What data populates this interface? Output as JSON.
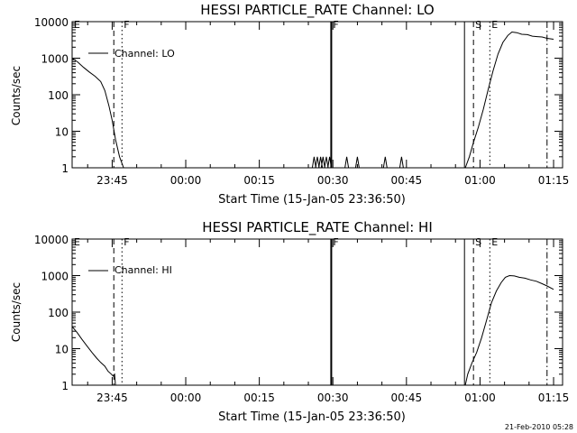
{
  "chart_data": [
    {
      "type": "line",
      "title": "HESSI PARTICLE_RATE Channel: LO",
      "xlabel": "Start Time (15-Jan-05 23:36:50)",
      "ylabel": "Counts/sec",
      "y_scale": "log",
      "ylim": [
        1,
        10000
      ],
      "y_ticks": [
        "1",
        "10",
        "100",
        "1000",
        "10000"
      ],
      "xlim": [
        "23:36:50",
        "01:16:50"
      ],
      "x_ticks": [
        "23:45",
        "00:00",
        "00:15",
        "00:30",
        "00:45",
        "01:00",
        "01:15"
      ],
      "legend": "Channel: LO",
      "legend_position": "top-left",
      "grid": false,
      "series": [
        {
          "name": "Channel: LO",
          "points": [
            [
              "23:36:50",
              1000
            ],
            [
              "23:38:00",
              780
            ],
            [
              "23:39:10",
              560
            ],
            [
              "23:40:20",
              420
            ],
            [
              "23:41:30",
              320
            ],
            [
              "23:42:40",
              230
            ],
            [
              "23:43:30",
              130
            ],
            [
              "23:44:20",
              50
            ],
            [
              "23:45:00",
              20
            ],
            [
              "23:45:40",
              6
            ],
            [
              "23:46:30",
              2
            ],
            [
              "23:47:20",
              1
            ],
            [
              "00:30:00",
              1
            ],
            [
              "00:57:00",
              1
            ],
            [
              "00:57:50",
              2
            ],
            [
              "00:58:40",
              5
            ],
            [
              "00:59:40",
              13
            ],
            [
              "01:00:40",
              40
            ],
            [
              "01:01:40",
              140
            ],
            [
              "01:02:40",
              450
            ],
            [
              "01:03:40",
              1300
            ],
            [
              "01:04:40",
              2700
            ],
            [
              "01:05:40",
              4200
            ],
            [
              "01:06:30",
              5200
            ],
            [
              "01:07:30",
              5000
            ],
            [
              "01:08:30",
              4500
            ],
            [
              "01:09:40",
              4400
            ],
            [
              "01:10:40",
              4000
            ],
            [
              "01:11:40",
              3900
            ],
            [
              "01:12:40",
              3800
            ],
            [
              "01:13:40",
              3500
            ],
            [
              "01:15:00",
              3300
            ]
          ]
        }
      ],
      "spikes": [
        "00:26:10",
        "00:26:50",
        "00:27:30",
        "00:28:00",
        "00:28:40",
        "00:29:20",
        "00:32:50",
        "00:35:00",
        "00:40:40",
        "00:44:00"
      ],
      "markers": [
        {
          "time": "23:36:50",
          "label": "E",
          "style": "dash-dot"
        },
        {
          "time": "23:45:20",
          "label": "",
          "style": "dash"
        },
        {
          "time": "23:47:00",
          "label": "F",
          "style": "dot"
        },
        {
          "time": "00:29:40",
          "label": "F",
          "style": "solid"
        },
        {
          "time": "00:56:50",
          "label": "",
          "style": "solid"
        },
        {
          "time": "00:58:40",
          "label": "S",
          "style": "dash"
        },
        {
          "time": "01:02:00",
          "label": "E",
          "style": "dot"
        },
        {
          "time": "01:13:40",
          "label": "",
          "style": "dash-dot"
        }
      ]
    },
    {
      "type": "line",
      "title": "HESSI PARTICLE_RATE Channel: HI",
      "xlabel": "Start Time (15-Jan-05 23:36:50)",
      "ylabel": "Counts/sec",
      "y_scale": "log",
      "ylim": [
        1,
        10000
      ],
      "y_ticks": [
        "1",
        "10",
        "100",
        "1000",
        "10000"
      ],
      "xlim": [
        "23:36:50",
        "01:16:50"
      ],
      "x_ticks": [
        "23:45",
        "00:00",
        "00:15",
        "00:30",
        "00:45",
        "01:00",
        "01:15"
      ],
      "legend": "Channel: HI",
      "legend_position": "top-left",
      "grid": false,
      "series": [
        {
          "name": "Channel: HI",
          "points": [
            [
              "23:36:50",
              40
            ],
            [
              "23:37:50",
              28
            ],
            [
              "23:38:50",
              18
            ],
            [
              "23:39:50",
              12
            ],
            [
              "23:40:50",
              8
            ],
            [
              "23:41:50",
              5.5
            ],
            [
              "23:42:40",
              4.2
            ],
            [
              "23:43:30",
              3.3
            ],
            [
              "23:44:10",
              2.4
            ],
            [
              "23:44:50",
              2.0
            ],
            [
              "23:45:10",
              1.8
            ],
            [
              "23:45:30",
              2.0
            ],
            [
              "23:45:40",
              1
            ],
            [
              "00:57:00",
              1
            ],
            [
              "00:57:30",
              2
            ],
            [
              "00:58:20",
              4
            ],
            [
              "00:59:20",
              8
            ],
            [
              "01:00:20",
              20
            ],
            [
              "01:01:20",
              60
            ],
            [
              "01:02:20",
              180
            ],
            [
              "01:03:20",
              380
            ],
            [
              "01:04:20",
              650
            ],
            [
              "01:05:10",
              900
            ],
            [
              "01:06:00",
              1000
            ],
            [
              "01:07:00",
              980
            ],
            [
              "01:08:00",
              900
            ],
            [
              "01:09:10",
              850
            ],
            [
              "01:10:20",
              760
            ],
            [
              "01:11:30",
              700
            ],
            [
              "01:12:40",
              600
            ],
            [
              "01:13:40",
              520
            ],
            [
              "01:15:00",
              420
            ]
          ]
        }
      ],
      "markers": [
        {
          "time": "23:36:50",
          "label": "E",
          "style": "dash-dot"
        },
        {
          "time": "23:45:20",
          "label": "",
          "style": "dash"
        },
        {
          "time": "23:47:00",
          "label": "F",
          "style": "dot"
        },
        {
          "time": "00:29:40",
          "label": "F",
          "style": "solid"
        },
        {
          "time": "00:56:50",
          "label": "",
          "style": "solid"
        },
        {
          "time": "00:58:40",
          "label": "S",
          "style": "dash"
        },
        {
          "time": "01:02:00",
          "label": "E",
          "style": "dot"
        },
        {
          "time": "01:13:40",
          "label": "",
          "style": "dash-dot"
        }
      ]
    }
  ],
  "footer": {
    "timestamp": "21-Feb-2010 05:28"
  }
}
